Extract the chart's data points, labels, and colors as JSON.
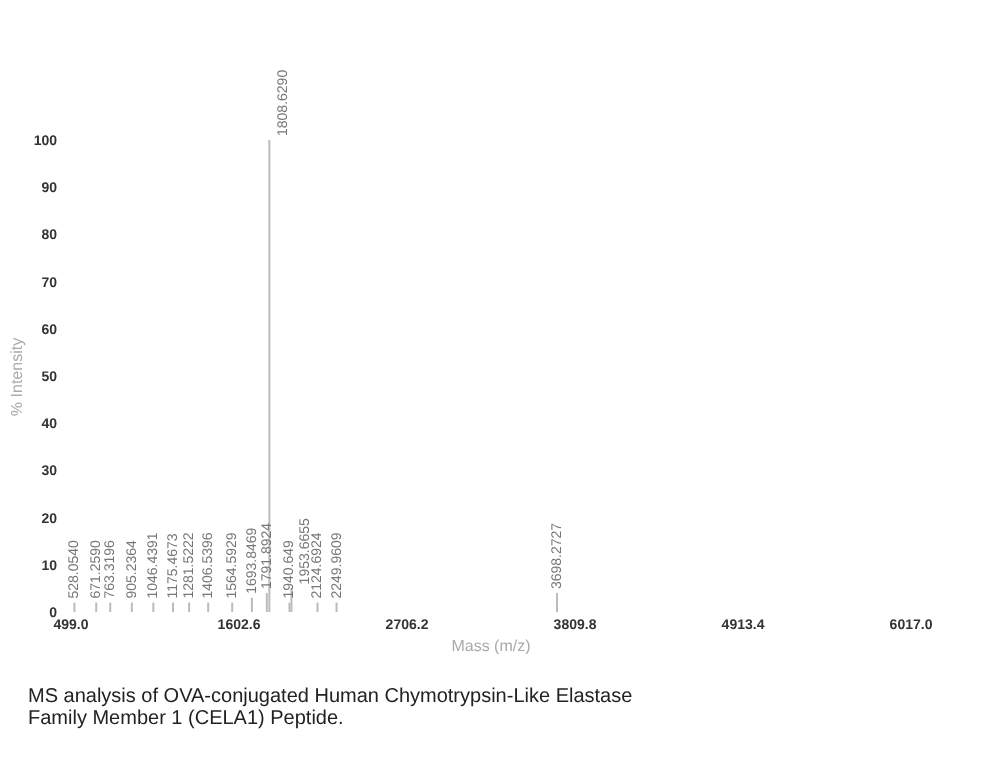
{
  "chart_data": {
    "type": "bar",
    "xlabel": "Mass (m/z)",
    "ylabel": "% Intensity",
    "x": [
      528.054,
      671.259,
      763.3196,
      905.2364,
      1046.4391,
      1175.4673,
      1281.5222,
      1406.5396,
      1564.5929,
      1693.8469,
      1791.8924,
      1808.629,
      1940.649,
      1953.6655,
      2124.6924,
      2249.9609,
      3698.2727
    ],
    "values": [
      2,
      2,
      2,
      2,
      2,
      2,
      2,
      2,
      2,
      3,
      4,
      100,
      2,
      5,
      2,
      2,
      4
    ],
    "color": "#bbbbbb",
    "xlim": [
      499,
      6017
    ],
    "xticks": [
      {
        "value": 499,
        "label": "499.0"
      },
      {
        "value": 1602.6,
        "label": "1602.6"
      },
      {
        "value": 2706.2,
        "label": "2706.2"
      },
      {
        "value": 3809.8,
        "label": "3809.8"
      },
      {
        "value": 4913.4,
        "label": "4913.4"
      },
      {
        "value": 6017,
        "label": "6017.0"
      }
    ],
    "ylim": [
      0,
      100
    ],
    "yticks": [
      0,
      10,
      20,
      30,
      40,
      50,
      60,
      70,
      80,
      90,
      100
    ],
    "annotations": [
      {
        "text": "528.0540",
        "x": 528.054,
        "y": 2
      },
      {
        "text": "671.2590",
        "x": 671.259,
        "y": 2
      },
      {
        "text": "763.3196",
        "x": 763.3196,
        "y": 2
      },
      {
        "text": "905.2364",
        "x": 905.2364,
        "y": 2
      },
      {
        "text": "1046.4391",
        "x": 1046.4391,
        "y": 2
      },
      {
        "text": "1175.4673",
        "x": 1175.4673,
        "y": 2
      },
      {
        "text": "1281.5222",
        "x": 1281.5222,
        "y": 2
      },
      {
        "text": "1406.5396",
        "x": 1406.5396,
        "y": 2
      },
      {
        "text": "1564.5929",
        "x": 1564.5929,
        "y": 2
      },
      {
        "text": "1693.8469",
        "x": 1693.8469,
        "y": 3
      },
      {
        "text": "1791.8924",
        "x": 1791.8924,
        "y": 4
      },
      {
        "text": "1808.6290",
        "x": 1808.629,
        "y": 100
      },
      {
        "text": "1940.649",
        "x": 1940.649,
        "y": 2
      },
      {
        "text": "1953.6655",
        "x": 1953.6655,
        "y": 5
      },
      {
        "text": "2124.6924",
        "x": 2124.6924,
        "y": 2
      },
      {
        "text": "2249.9609",
        "x": 2249.9609,
        "y": 2
      },
      {
        "text": "3698.2727",
        "x": 3698.2727,
        "y": 4
      },
      "MS analysis of OVA-conjugated Human Chymotrypsin-Like Elastase Family Member 1 (CELA1) Peptide."
    ]
  }
}
